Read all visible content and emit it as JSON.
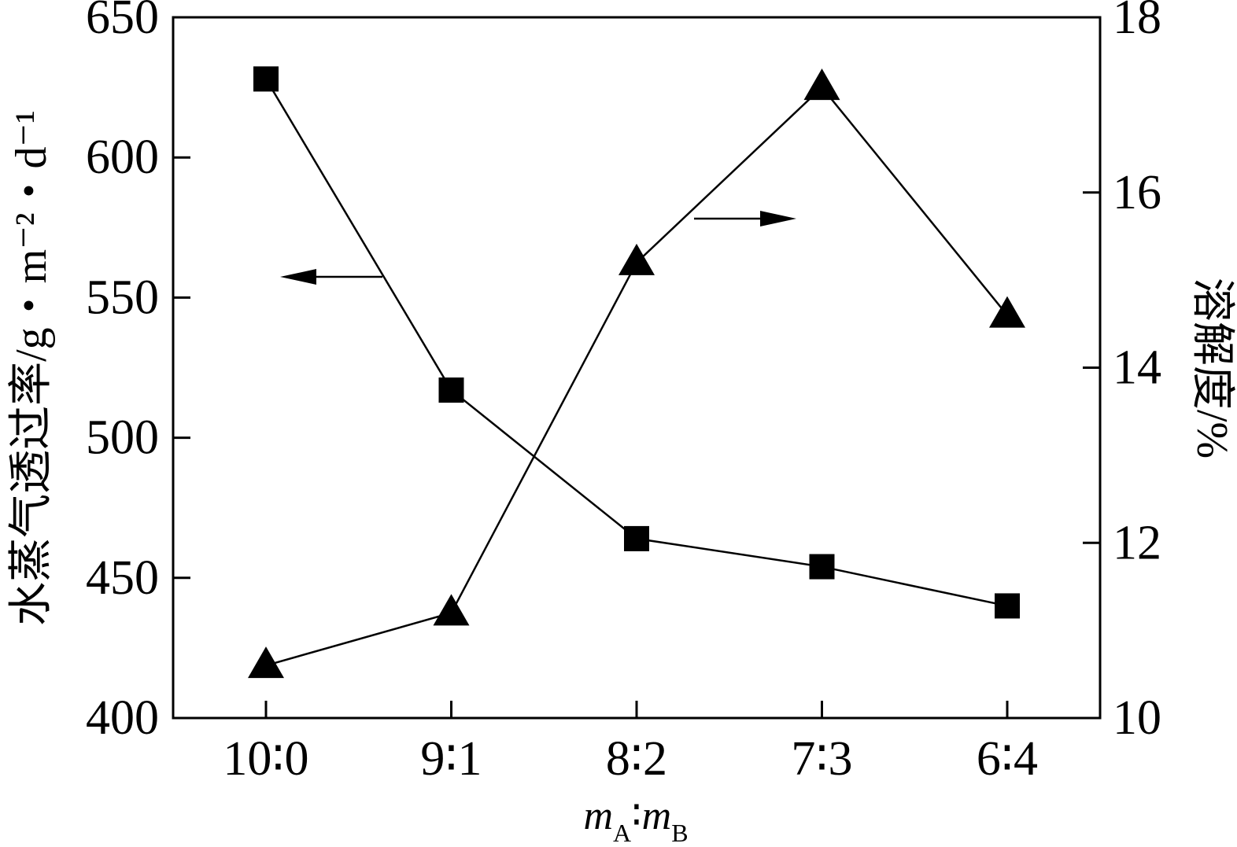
{
  "chart_data": {
    "type": "line",
    "categories": [
      "10∶0",
      "9∶1",
      "8∶2",
      "7∶3",
      "6∶4"
    ],
    "xlabel": {
      "m1": "m",
      "sub1": "A",
      "sep": "∶",
      "m2": "m",
      "sub2": "B"
    },
    "ylabel_left": "水蒸气透过率/g・m⁻²・d⁻¹",
    "ylabel_right": "溶解度/%",
    "ylim_left": [
      400,
      650
    ],
    "ylim_right": [
      10,
      18
    ],
    "yticks_left": [
      "400",
      "450",
      "500",
      "550",
      "600",
      "650"
    ],
    "yticks_right": [
      "10",
      "12",
      "14",
      "16",
      "18"
    ],
    "series": [
      {
        "axis": "left",
        "marker": "square",
        "values": [
          628,
          517,
          464,
          454,
          440
        ]
      },
      {
        "axis": "right",
        "marker": "triangle",
        "values": [
          10.6,
          11.2,
          15.2,
          17.2,
          14.6
        ]
      }
    ],
    "annotations": [
      {
        "type": "arrow",
        "direction": "left",
        "points_to": "left-axis"
      },
      {
        "type": "arrow",
        "direction": "right",
        "points_to": "right-axis"
      }
    ],
    "grid": false,
    "legend": "none"
  }
}
